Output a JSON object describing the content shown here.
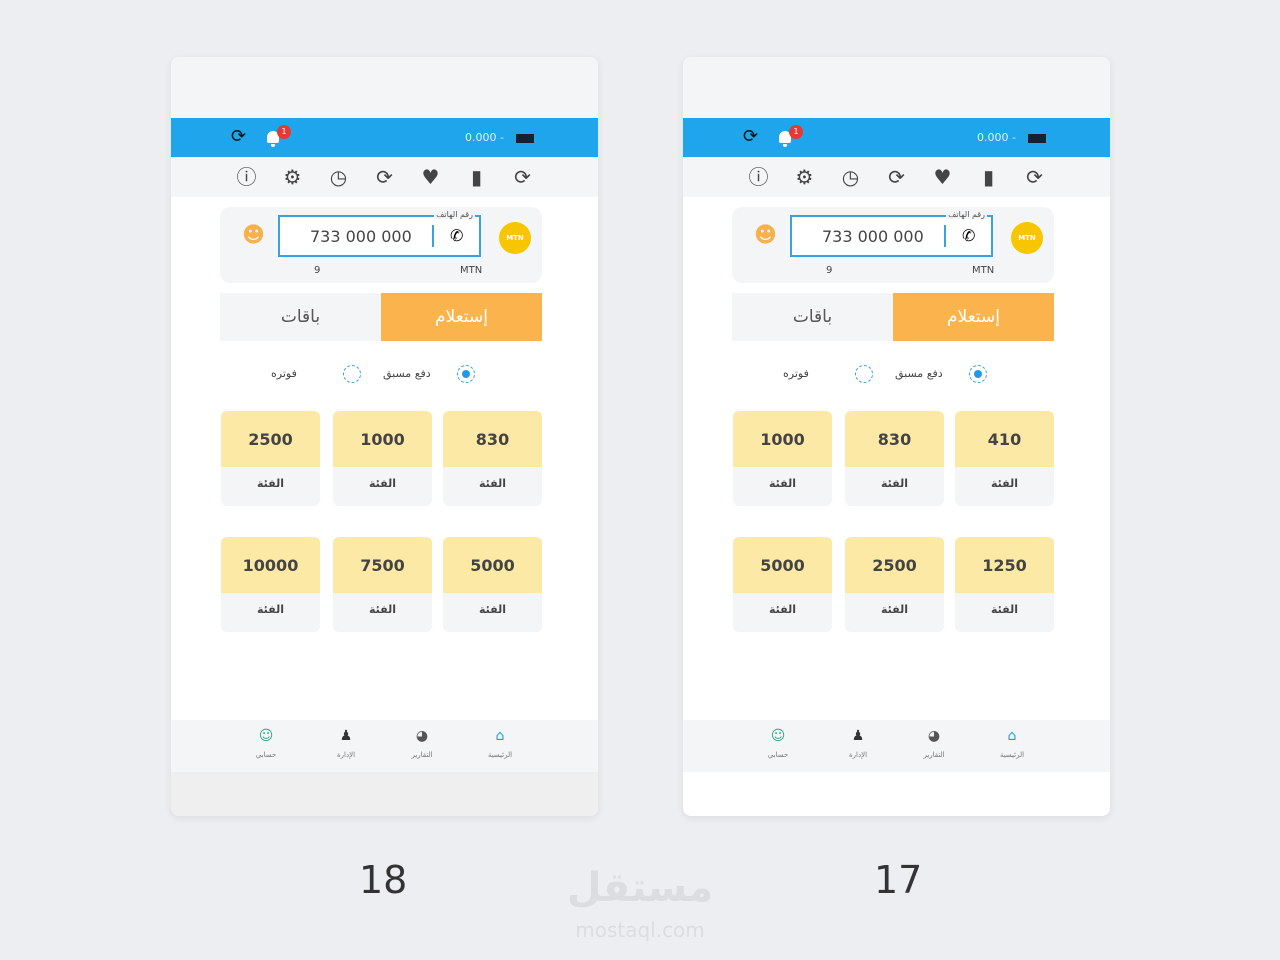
{
  "phones": [
    {
      "caption": "18",
      "balance": "0.000 -",
      "notif_count": "1",
      "phone_label": "رقم الهاتف",
      "phone_number": "733 000 000",
      "operator": "MTN",
      "digits": "9",
      "tabs": {
        "packages": "باقات",
        "inquiry": "إستعلام"
      },
      "radios": {
        "prepaid": "دفع مسبق",
        "postpaid": "فوتره",
        "selected": "prepaid"
      },
      "tiles": [
        {
          "value": "830",
          "label": "الفئة"
        },
        {
          "value": "1000",
          "label": "الفئة"
        },
        {
          "value": "2500",
          "label": "الفئة"
        },
        {
          "value": "5000",
          "label": "الفئة"
        },
        {
          "value": "7500",
          "label": "الفئة"
        },
        {
          "value": "10000",
          "label": "الفئة"
        }
      ],
      "nav": [
        {
          "label": "الرئيسية",
          "icon": "home-icon"
        },
        {
          "label": "التقارير",
          "icon": "pie-chart-icon"
        },
        {
          "label": "الإدارة",
          "icon": "users-icon"
        },
        {
          "label": "حسابي",
          "icon": "account-icon"
        }
      ]
    },
    {
      "caption": "17",
      "balance": "0.000 -",
      "notif_count": "1",
      "phone_label": "رقم الهاتف",
      "phone_number": "733 000 000",
      "operator": "MTN",
      "digits": "9",
      "tabs": {
        "packages": "باقات",
        "inquiry": "إستعلام"
      },
      "radios": {
        "prepaid": "دفع مسبق",
        "postpaid": "فوتره",
        "selected": "prepaid"
      },
      "tiles": [
        {
          "value": "410",
          "label": "الفئة"
        },
        {
          "value": "830",
          "label": "الفئة"
        },
        {
          "value": "1000",
          "label": "الفئة"
        },
        {
          "value": "1250",
          "label": "الفئة"
        },
        {
          "value": "2500",
          "label": "الفئة"
        },
        {
          "value": "5000",
          "label": "الفئة"
        }
      ],
      "nav": [
        {
          "label": "الرئيسية",
          "icon": "home-icon"
        },
        {
          "label": "التقارير",
          "icon": "pie-chart-icon"
        },
        {
          "label": "الإدارة",
          "icon": "users-icon"
        },
        {
          "label": "حسابي",
          "icon": "account-icon"
        }
      ]
    }
  ],
  "colors": {
    "topbar": "#1ea5ec",
    "accent": "#fbb44d",
    "tile": "#fde9a6"
  },
  "watermark": {
    "arabic": "مستقل",
    "latin": "mostaql.com"
  }
}
